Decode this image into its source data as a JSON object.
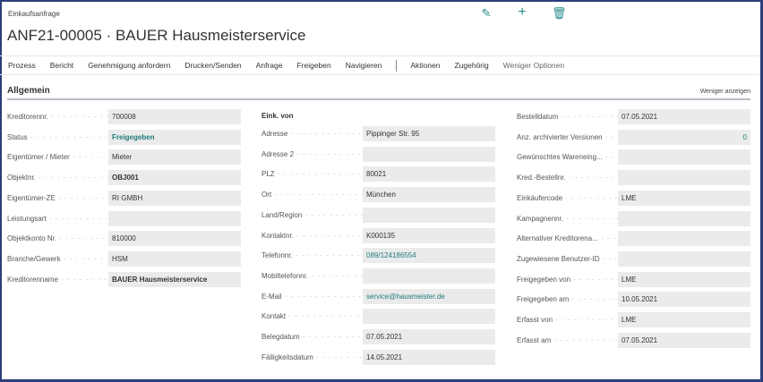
{
  "header": {
    "breadcrumb": "Einkaufsanfrage",
    "title": "ANF21-00005 · BAUER Hausmeisterservice",
    "icons": [
      "edit-icon",
      "add-icon",
      "delete-icon"
    ]
  },
  "menu": {
    "items": [
      "Prozess",
      "Bericht",
      "Genehmigung anfordern",
      "Drucken/Senden",
      "Anfrage",
      "Freigeben",
      "Navigieren"
    ],
    "items2": [
      "Aktionen",
      "Zugehörig",
      "Weniger Optionen"
    ]
  },
  "section": {
    "title": "Allgemein",
    "toggle": "Weniger anzeigen",
    "subhead": "Eink. von"
  },
  "col1": [
    {
      "label": "Kreditorennr.",
      "value": "700008"
    },
    {
      "label": "Status",
      "value": "Freigegeben",
      "style": "boldlink"
    },
    {
      "label": "Eigentümer / Mieter",
      "value": "Mieter"
    },
    {
      "label": "Objektnr.",
      "value": "OBJ001",
      "style": "bold"
    },
    {
      "label": "Eigentümer-ZE",
      "value": "RI GMBH"
    },
    {
      "label": "Leistungsart",
      "value": ""
    },
    {
      "label": "Objektkonto Nr.",
      "value": "810000"
    },
    {
      "label": "Branche/Gewerk",
      "value": "HSM"
    },
    {
      "label": "Kreditorenname",
      "value": "BAUER Hausmeisterservice",
      "style": "bold"
    }
  ],
  "col2": [
    {
      "label": "Adresse",
      "value": "Pippinger Str. 95"
    },
    {
      "label": "Adresse 2",
      "value": ""
    },
    {
      "label": "PLZ",
      "value": "80021"
    },
    {
      "label": "Ort",
      "value": "München"
    },
    {
      "label": "Land/Region",
      "value": ""
    },
    {
      "label": "Kontaktnr.",
      "value": "K000135"
    },
    {
      "label": "Telefonnr.",
      "value": "089/124186554",
      "style": "link"
    },
    {
      "label": "Mobiltelefonnr.",
      "value": ""
    },
    {
      "label": "E-Mail",
      "value": "service@hausmeister.de",
      "style": "link"
    },
    {
      "label": "Kontakt",
      "value": ""
    },
    {
      "label": "Belegdatum",
      "value": "07.05.2021"
    },
    {
      "label": "Fälligkeitsdatum",
      "value": "14.05.2021"
    }
  ],
  "col3": [
    {
      "label": "Bestelldatum",
      "value": "07.05.2021"
    },
    {
      "label": "Anz. archivierter Versionen",
      "value": "0",
      "style": "num"
    },
    {
      "label": "Gewünschtes Wareneing...",
      "value": ""
    },
    {
      "label": "Kred.-Bestellnr.",
      "value": ""
    },
    {
      "label": "Einkäufercode",
      "value": "LME"
    },
    {
      "label": "Kampagnennr.",
      "value": ""
    },
    {
      "label": "Alternativer Kreditorena...",
      "value": ""
    },
    {
      "label": "Zugewiesene Benutzer-ID",
      "value": ""
    },
    {
      "label": "Freigegeben von",
      "value": "LME"
    },
    {
      "label": "Freigegeben am",
      "value": "10.05.2021"
    },
    {
      "label": "Erfasst von",
      "value": "LME"
    },
    {
      "label": "Erfasst am",
      "value": "07.05.2021"
    }
  ]
}
